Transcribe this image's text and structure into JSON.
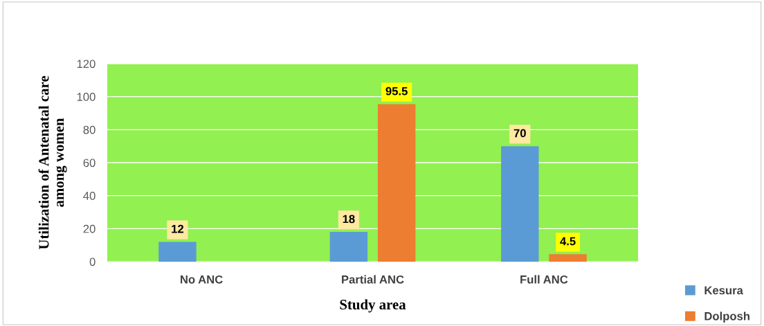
{
  "chart_data": {
    "type": "bar",
    "xlabel": "Study area",
    "ylabel": "Utilization of Antenatal care\namong women",
    "categories": [
      "No ANC",
      "Partial ANC",
      "Full ANC"
    ],
    "series": [
      {
        "name": "Kesura",
        "color": "#5b9bd5",
        "values": [
          12,
          18,
          70
        ]
      },
      {
        "name": "Dolposh",
        "color": "#ed7d31",
        "values": [
          null,
          95.5,
          4.5
        ]
      }
    ],
    "ylim": [
      0,
      120
    ],
    "yticks": [
      0,
      20,
      40,
      60,
      80,
      100,
      120
    ],
    "grid": "y",
    "legend": "bottom right",
    "data_labels": true
  }
}
